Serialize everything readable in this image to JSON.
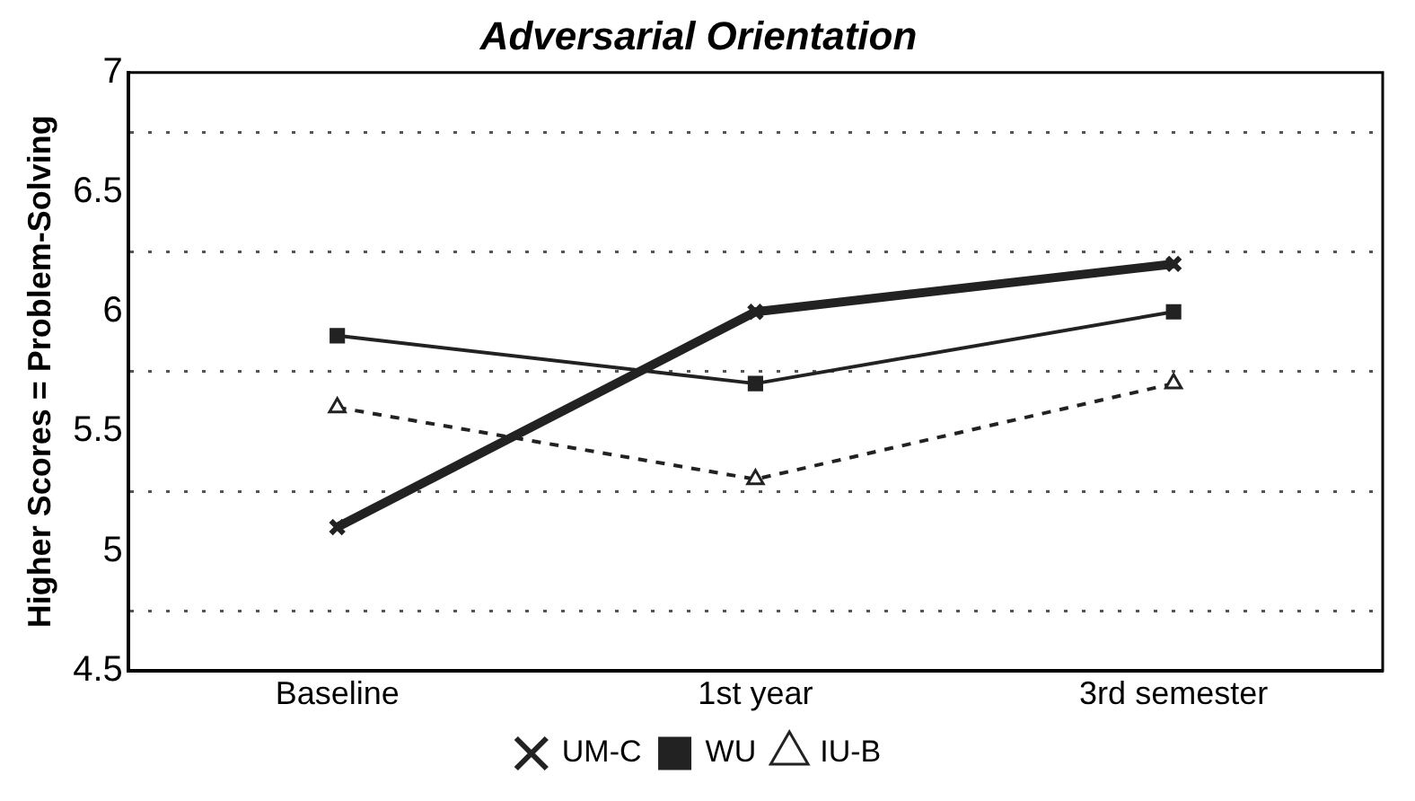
{
  "chart_data": {
    "type": "line",
    "title": "Adversarial Orientation",
    "ylabel": "Higher Scores = Problem-Solving",
    "categories": [
      "Baseline",
      "1st year",
      "3rd semester"
    ],
    "series": [
      {
        "name": "UM-C",
        "color": "#222222",
        "values": [
          5.1,
          6.0,
          6.2
        ],
        "marker": "cross",
        "line_style": "solid"
      },
      {
        "name": "WU",
        "color": "#222222",
        "values": [
          5.9,
          5.7,
          6.0
        ],
        "marker": "square",
        "line_style": "solid"
      },
      {
        "name": "IU-B",
        "color": "#222222",
        "values": [
          5.6,
          5.3,
          5.7
        ],
        "marker": "triangle",
        "line_style": "dashed"
      }
    ],
    "ylim": [
      4.5,
      7
    ],
    "yticks": [
      4.5,
      {
        "value": 4.75,
        "label": null
      },
      5,
      {
        "value": 5.25,
        "label": null
      },
      5.5,
      {
        "value": 5.75,
        "label": null
      },
      6,
      {
        "value": 6.25,
        "label": null
      },
      6.5,
      {
        "value": 6.75,
        "label": null
      },
      7
    ],
    "grid": "y",
    "legend": "bottom"
  }
}
